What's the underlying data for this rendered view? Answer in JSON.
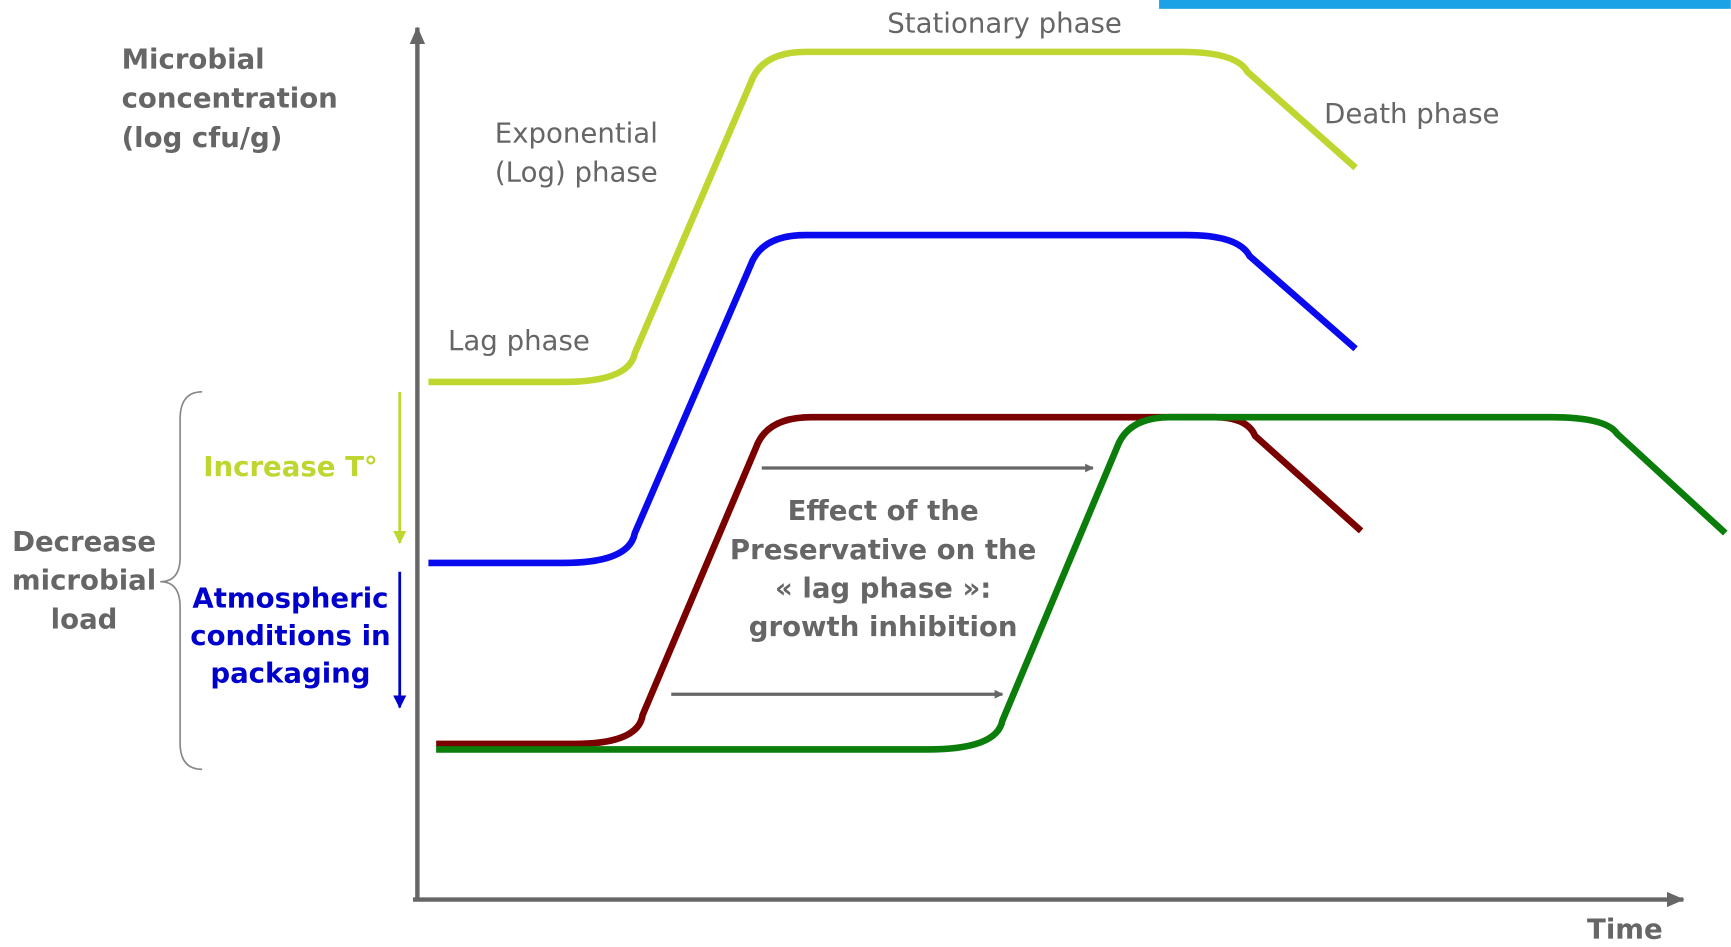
{
  "labels": {
    "y_axis": [
      "Microbial",
      "concentration",
      "(log cfu/g)"
    ],
    "x_axis": "Time",
    "stationary": "Stationary phase",
    "exponential": [
      "Exponential",
      "(Log) phase"
    ],
    "death": "Death phase",
    "lag": "Lag phase",
    "increase_t": "Increase T°",
    "atmospheric": [
      "Atmospheric",
      "conditions in",
      "packaging"
    ],
    "decrease": [
      "Decrease",
      "microbial",
      "load"
    ],
    "effect": [
      "Effect of the",
      "Preservative on the",
      "« lag phase »:",
      "growth inhibition"
    ]
  }
}
